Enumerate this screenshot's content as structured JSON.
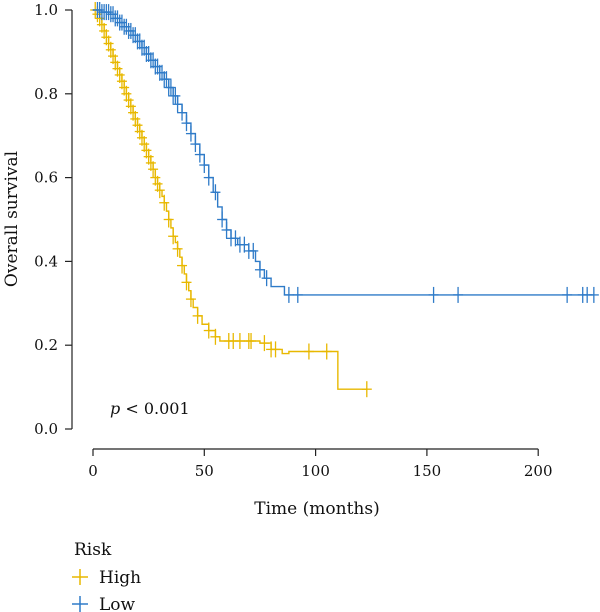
{
  "chart_data": {
    "type": "line",
    "title": "",
    "xlabel": "Time (months)",
    "ylabel": "Overall survival",
    "xlim": [
      0,
      225
    ],
    "ylim": [
      0,
      1
    ],
    "xticks": [
      0,
      50,
      100,
      150,
      200
    ],
    "yticks": [
      "0.0",
      "0.2",
      "0.4",
      "0.6",
      "0.8",
      "1.0"
    ],
    "annotation": {
      "p_symbol": "p",
      "p_text": " < 0.001"
    },
    "legend": {
      "title": "Risk",
      "placement": "bottom-left"
    },
    "series": [
      {
        "name": "High",
        "color": "#E8B800",
        "steps": [
          [
            0,
            1.0
          ],
          [
            2,
            0.99
          ],
          [
            3,
            0.98
          ],
          [
            4,
            0.965
          ],
          [
            5,
            0.95
          ],
          [
            6,
            0.935
          ],
          [
            7,
            0.92
          ],
          [
            8,
            0.905
          ],
          [
            9,
            0.89
          ],
          [
            10,
            0.875
          ],
          [
            11,
            0.86
          ],
          [
            12,
            0.845
          ],
          [
            13,
            0.83
          ],
          [
            14,
            0.815
          ],
          [
            15,
            0.8
          ],
          [
            16,
            0.785
          ],
          [
            17,
            0.77
          ],
          [
            18,
            0.755
          ],
          [
            19,
            0.74
          ],
          [
            20,
            0.725
          ],
          [
            21,
            0.71
          ],
          [
            22,
            0.695
          ],
          [
            23,
            0.68
          ],
          [
            24,
            0.665
          ],
          [
            25,
            0.65
          ],
          [
            26,
            0.635
          ],
          [
            27,
            0.62
          ],
          [
            28,
            0.6
          ],
          [
            29,
            0.585
          ],
          [
            30,
            0.57
          ],
          [
            31,
            0.555
          ],
          [
            32,
            0.54
          ],
          [
            33,
            0.52
          ],
          [
            34,
            0.5
          ],
          [
            35,
            0.48
          ],
          [
            36,
            0.46
          ],
          [
            37,
            0.445
          ],
          [
            38,
            0.43
          ],
          [
            39,
            0.41
          ],
          [
            40,
            0.39
          ],
          [
            41,
            0.37
          ],
          [
            42,
            0.35
          ],
          [
            43,
            0.33
          ],
          [
            44,
            0.31
          ],
          [
            45,
            0.29
          ],
          [
            47,
            0.27
          ],
          [
            49,
            0.25
          ],
          [
            52,
            0.235
          ],
          [
            55,
            0.22
          ],
          [
            57,
            0.21
          ],
          [
            75,
            0.205
          ],
          [
            80,
            0.19
          ],
          [
            85,
            0.18
          ],
          [
            88,
            0.185
          ],
          [
            110,
            0.095
          ],
          [
            123,
            0.095
          ]
        ],
        "censor_times": [
          1,
          2,
          3,
          4,
          5,
          6,
          7,
          8,
          9,
          10,
          11,
          12,
          13,
          14,
          15,
          16,
          17,
          18,
          19,
          20,
          21,
          22,
          23,
          24,
          25,
          26,
          27,
          28,
          29,
          30,
          32,
          34,
          36,
          38,
          40,
          42,
          44,
          47,
          52,
          55,
          61,
          63,
          66,
          70,
          71,
          77,
          80,
          82,
          97,
          105,
          123
        ]
      },
      {
        "name": "Low",
        "color": "#2F7BC8",
        "steps": [
          [
            0,
            1.0
          ],
          [
            4,
            0.995
          ],
          [
            8,
            0.99
          ],
          [
            10,
            0.98
          ],
          [
            12,
            0.97
          ],
          [
            14,
            0.96
          ],
          [
            16,
            0.95
          ],
          [
            18,
            0.94
          ],
          [
            20,
            0.925
          ],
          [
            22,
            0.91
          ],
          [
            24,
            0.895
          ],
          [
            26,
            0.88
          ],
          [
            28,
            0.865
          ],
          [
            30,
            0.85
          ],
          [
            32,
            0.835
          ],
          [
            34,
            0.815
          ],
          [
            36,
            0.795
          ],
          [
            38,
            0.775
          ],
          [
            40,
            0.755
          ],
          [
            42,
            0.73
          ],
          [
            44,
            0.705
          ],
          [
            46,
            0.68
          ],
          [
            48,
            0.655
          ],
          [
            50,
            0.63
          ],
          [
            52,
            0.6
          ],
          [
            54,
            0.565
          ],
          [
            56,
            0.53
          ],
          [
            58,
            0.5
          ],
          [
            60,
            0.475
          ],
          [
            62,
            0.455
          ],
          [
            65,
            0.44
          ],
          [
            70,
            0.425
          ],
          [
            73,
            0.4
          ],
          [
            75,
            0.38
          ],
          [
            77,
            0.36
          ],
          [
            80,
            0.34
          ],
          [
            86,
            0.32
          ],
          [
            225,
            0.32
          ]
        ],
        "censor_times": [
          2,
          3,
          4,
          5,
          6,
          7,
          8,
          9,
          10,
          11,
          12,
          13,
          14,
          15,
          16,
          17,
          18,
          19,
          20,
          21,
          22,
          23,
          24,
          25,
          26,
          27,
          28,
          29,
          30,
          31,
          32,
          33,
          34,
          35,
          36,
          37,
          38,
          40,
          42,
          44,
          46,
          48,
          50,
          52,
          55,
          58,
          60,
          62,
          64,
          66,
          68,
          70,
          72,
          75,
          78,
          88,
          92,
          153,
          164,
          213,
          220,
          222,
          225
        ]
      }
    ]
  }
}
